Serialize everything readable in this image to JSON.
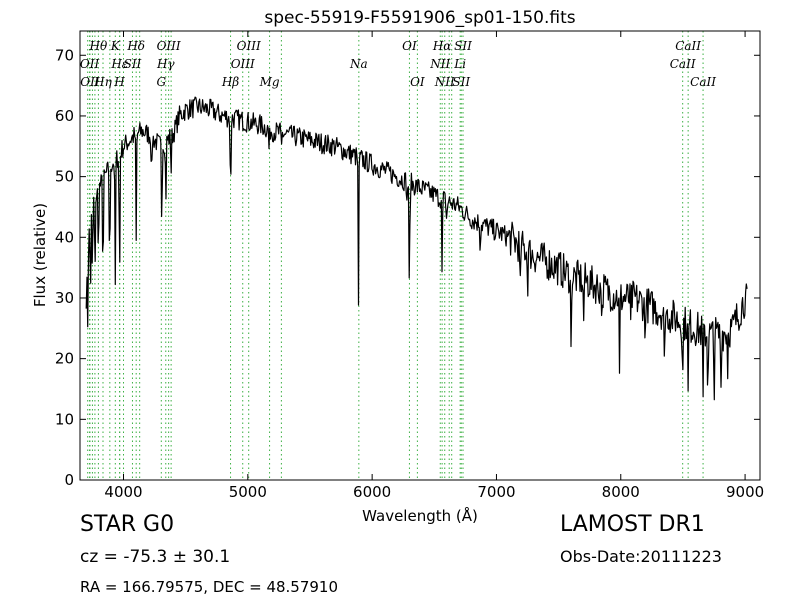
{
  "chart_data": {
    "type": "line",
    "title": "spec-55919-F5591906_sp01-150.fits",
    "xlabel": "Wavelength (Å)",
    "ylabel": "Flux (relative)",
    "xlim": [
      3650,
      9120
    ],
    "ylim": [
      0,
      74
    ],
    "xticks": [
      4000,
      5000,
      6000,
      7000,
      8000,
      9000
    ],
    "yticks": [
      0,
      10,
      20,
      30,
      40,
      50,
      60,
      70
    ],
    "grid": false,
    "series_color": "#000000",
    "line_marker_color": "#3cb043",
    "continuum": [
      [
        3700,
        30
      ],
      [
        3720,
        40
      ],
      [
        3760,
        46
      ],
      [
        3800,
        48
      ],
      [
        3850,
        50
      ],
      [
        3900,
        52
      ],
      [
        3950,
        53
      ],
      [
        4000,
        55
      ],
      [
        4050,
        56
      ],
      [
        4100,
        57
      ],
      [
        4150,
        57.5
      ],
      [
        4200,
        57
      ],
      [
        4250,
        56
      ],
      [
        4300,
        55
      ],
      [
        4350,
        56
      ],
      [
        4400,
        57
      ],
      [
        4450,
        60
      ],
      [
        4500,
        61
      ],
      [
        4600,
        61.5
      ],
      [
        4700,
        61
      ],
      [
        4800,
        60
      ],
      [
        4900,
        59.5
      ],
      [
        5000,
        59
      ],
      [
        5100,
        58.5
      ],
      [
        5200,
        57.5
      ],
      [
        5300,
        57
      ],
      [
        5400,
        56.5
      ],
      [
        5500,
        56
      ],
      [
        5600,
        55.5
      ],
      [
        5700,
        55
      ],
      [
        5800,
        54
      ],
      [
        5900,
        53
      ],
      [
        6000,
        52
      ],
      [
        6100,
        51
      ],
      [
        6200,
        50
      ],
      [
        6300,
        49
      ],
      [
        6400,
        48
      ],
      [
        6500,
        47
      ],
      [
        6600,
        46
      ],
      [
        6700,
        45
      ],
      [
        6800,
        43
      ],
      [
        6900,
        42
      ],
      [
        7000,
        41
      ],
      [
        7100,
        40
      ],
      [
        7200,
        38.5
      ],
      [
        7300,
        37
      ],
      [
        7400,
        36
      ],
      [
        7500,
        35
      ],
      [
        7600,
        33.5
      ],
      [
        7700,
        33
      ],
      [
        7800,
        32
      ],
      [
        7900,
        31
      ],
      [
        8000,
        30
      ],
      [
        8100,
        30
      ],
      [
        8200,
        29
      ],
      [
        8300,
        28
      ],
      [
        8400,
        27
      ],
      [
        8500,
        26
      ],
      [
        8600,
        25
      ],
      [
        8700,
        24
      ],
      [
        8800,
        24
      ],
      [
        8900,
        25
      ],
      [
        9000,
        30
      ],
      [
        9020,
        29
      ]
    ],
    "absorption_features": [
      [
        3712,
        10
      ],
      [
        3734,
        12
      ],
      [
        3750,
        12
      ],
      [
        3770,
        15
      ],
      [
        3798,
        12
      ],
      [
        3835,
        18
      ],
      [
        3889,
        20
      ],
      [
        3933,
        22
      ],
      [
        3968,
        23
      ],
      [
        4102,
        18
      ],
      [
        4226,
        7
      ],
      [
        4308,
        14
      ],
      [
        4340,
        11
      ],
      [
        4383,
        6
      ],
      [
        4861,
        15
      ],
      [
        5172,
        4
      ],
      [
        5270,
        3
      ],
      [
        5890,
        24
      ],
      [
        6280,
        4
      ],
      [
        6300,
        22
      ],
      [
        6563,
        14
      ],
      [
        6600,
        4
      ],
      [
        6870,
        4
      ],
      [
        7190,
        10
      ],
      [
        7250,
        6
      ],
      [
        7600,
        13
      ],
      [
        7700,
        8
      ],
      [
        7850,
        6
      ],
      [
        7990,
        14
      ],
      [
        8080,
        5
      ],
      [
        8194,
        6
      ],
      [
        8350,
        9
      ],
      [
        8498,
        11
      ],
      [
        8542,
        12
      ],
      [
        8662,
        12
      ],
      [
        8700,
        9
      ],
      [
        8750,
        10
      ],
      [
        8806,
        9
      ],
      [
        8860,
        6
      ]
    ],
    "spectral_lines": [
      {
        "label": "Hθ",
        "x": 3798,
        "row": 1
      },
      {
        "label": "K",
        "x": 3934,
        "row": 1
      },
      {
        "label": "Hδ",
        "x": 4102,
        "row": 1
      },
      {
        "label": "OIII",
        "x": 4363,
        "row": 1
      },
      {
        "label": "OIII",
        "x": 5007,
        "row": 1
      },
      {
        "label": "OI",
        "x": 6300,
        "row": 1
      },
      {
        "label": "Hα",
        "x": 6563,
        "row": 1
      },
      {
        "label": "SII",
        "x": 6731,
        "row": 1
      },
      {
        "label": "CaII",
        "x": 8542,
        "row": 1
      },
      {
        "label": "OII",
        "x": 3727,
        "row": 2
      },
      {
        "label": "Hε",
        "x": 3970,
        "row": 2
      },
      {
        "label": "SII",
        "x": 4072,
        "row": 2
      },
      {
        "label": "Hγ",
        "x": 4340,
        "row": 2
      },
      {
        "label": "OIII",
        "x": 4959,
        "row": 2
      },
      {
        "label": "Na",
        "x": 5893,
        "row": 2
      },
      {
        "label": "NII",
        "x": 6548,
        "row": 2
      },
      {
        "label": "Li",
        "x": 6708,
        "row": 2
      },
      {
        "label": "CaII",
        "x": 8498,
        "row": 2
      },
      {
        "label": "OII",
        "x": 3730,
        "row": 3
      },
      {
        "label": "Hη",
        "x": 3835,
        "row": 3
      },
      {
        "label": "H",
        "x": 3968,
        "row": 3
      },
      {
        "label": "G",
        "x": 4304,
        "row": 3
      },
      {
        "label": "Hβ",
        "x": 4861,
        "row": 3
      },
      {
        "label": "Mg",
        "x": 5175,
        "row": 3
      },
      {
        "label": "OI",
        "x": 6364,
        "row": 3
      },
      {
        "label": "NII",
        "x": 6584,
        "row": 3
      },
      {
        "label": "SII",
        "x": 6717,
        "row": 3
      },
      {
        "label": "CaII",
        "x": 8662,
        "row": 3
      }
    ],
    "extra_marker_positions": [
      3712,
      3750,
      3770,
      3890,
      4000,
      4130,
      4383,
      5270,
      6620,
      6640
    ]
  },
  "info": {
    "object_class": "STAR   G0",
    "redshift": "cz = -75.3 ± 30.1",
    "coordinates": "RA = 166.79575, DEC = 48.57910",
    "survey": "LAMOST DR1",
    "obs_date": "Obs-Date:20111223"
  }
}
